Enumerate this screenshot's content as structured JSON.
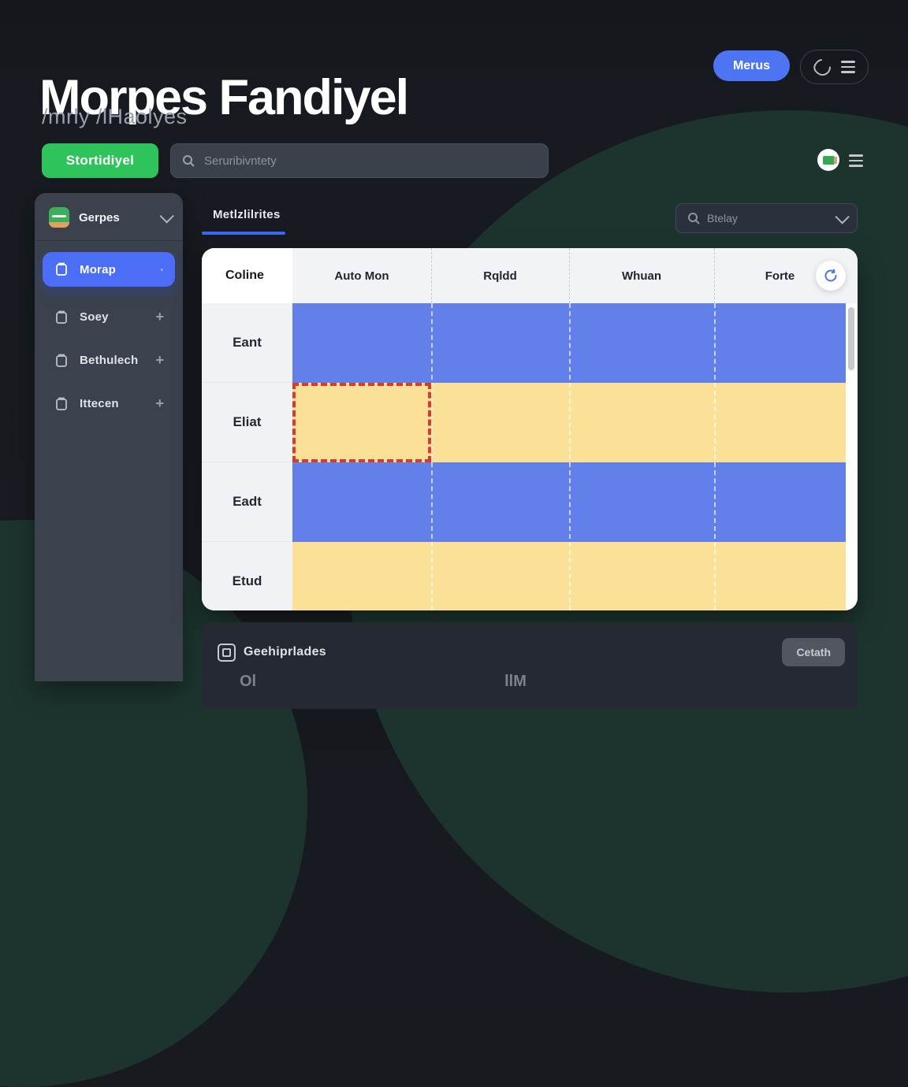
{
  "app": {
    "title": "Morpes Fandiyel",
    "subtitle": "/mrly /lHaolyes"
  },
  "topbar": {
    "menu_button_label": "Merus"
  },
  "actions": {
    "start_button_label": "Stortidiyel",
    "search_placeholder": "Seruribivntety"
  },
  "sidebar": {
    "workspace_label": "Gerpes",
    "items": [
      {
        "label": "Morap",
        "active": true,
        "suffix": "·",
        "icon": "mug-icon"
      },
      {
        "label": "Soey",
        "active": false,
        "suffix": "+",
        "icon": "box-icon"
      },
      {
        "label": "Bethulech",
        "active": false,
        "suffix": "+",
        "icon": "card-icon"
      },
      {
        "label": "Ittecen",
        "active": false,
        "suffix": "+",
        "icon": "layers-icon"
      }
    ]
  },
  "content": {
    "tab_label": "Metlzlilrites",
    "filter_value": "Btelay",
    "table": {
      "columns": [
        "Coline",
        "Auto Mon",
        "Rqldd",
        "Whuan",
        "Forte"
      ],
      "rows": [
        {
          "label": "Eant",
          "color": "blue",
          "selected": false
        },
        {
          "label": "Eliat",
          "color": "yellow",
          "selected": true
        },
        {
          "label": "Eadt",
          "color": "blue",
          "selected": false
        },
        {
          "label": "Etud",
          "color": "yellow",
          "selected": false
        }
      ]
    },
    "footer": {
      "label": "Geehiprlades",
      "button_label": "Cetath",
      "partial_left": "Ol",
      "partial_right": "llM"
    }
  },
  "colors": {
    "accent_blue": "#4c6df5",
    "button_green": "#2ec45b",
    "bar_blue": "#6180e9",
    "bar_yellow": "#fbe197",
    "selection_red": "#dc392c"
  }
}
